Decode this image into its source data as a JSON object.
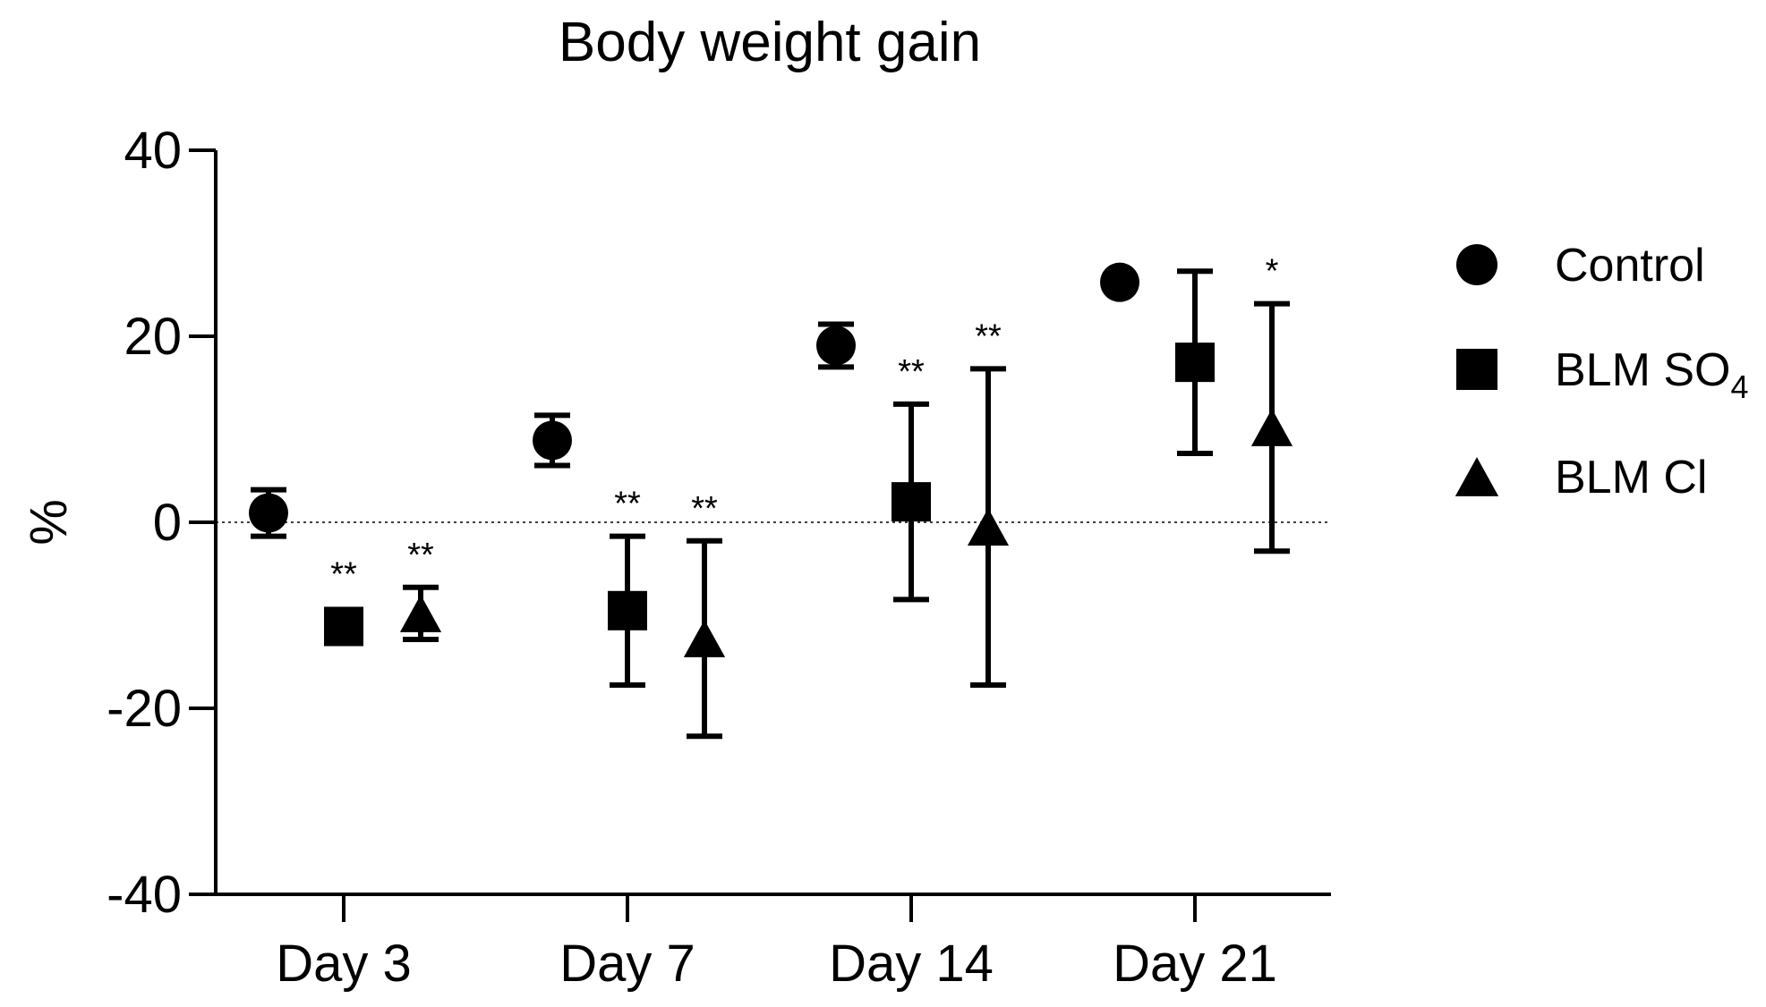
{
  "chart_data": {
    "type": "scatter",
    "title": "Body weight gain",
    "xlabel": "",
    "ylabel": "%",
    "ylim": [
      -40,
      40
    ],
    "y_ticks": [
      40,
      20,
      0,
      -20,
      -40
    ],
    "y_tick_labels": [
      "40",
      "20",
      "0",
      "-20",
      "-40"
    ],
    "categories": [
      "Day 3",
      "Day 7",
      "Day 14",
      "Day 21"
    ],
    "zero_reference_line": "dotted",
    "legend_position": "right",
    "series": [
      {
        "name": "Control",
        "legend_label": "Control",
        "marker": "circle",
        "values": [
          1,
          8.8,
          19,
          25.8
        ],
        "errors": [
          2.5,
          2.7,
          2.3,
          0
        ],
        "significance": [
          "",
          "",
          "",
          ""
        ]
      },
      {
        "name": "BLM SO4",
        "legend_label": "BLM SO",
        "legend_sub": "4",
        "marker": "square",
        "values": [
          -11.2,
          -9.5,
          2.2,
          17.2
        ],
        "errors": [
          0,
          8,
          10.5,
          9.8
        ],
        "significance": [
          "**",
          "**",
          "**",
          ""
        ]
      },
      {
        "name": "BLM Cl",
        "legend_label": "BLM Cl",
        "marker": "triangle",
        "values": [
          -9.8,
          -12.5,
          -0.5,
          10.2
        ],
        "errors": [
          2.8,
          10.5,
          17,
          13.3
        ],
        "significance": [
          "**",
          "**",
          "**",
          "*"
        ]
      }
    ]
  }
}
